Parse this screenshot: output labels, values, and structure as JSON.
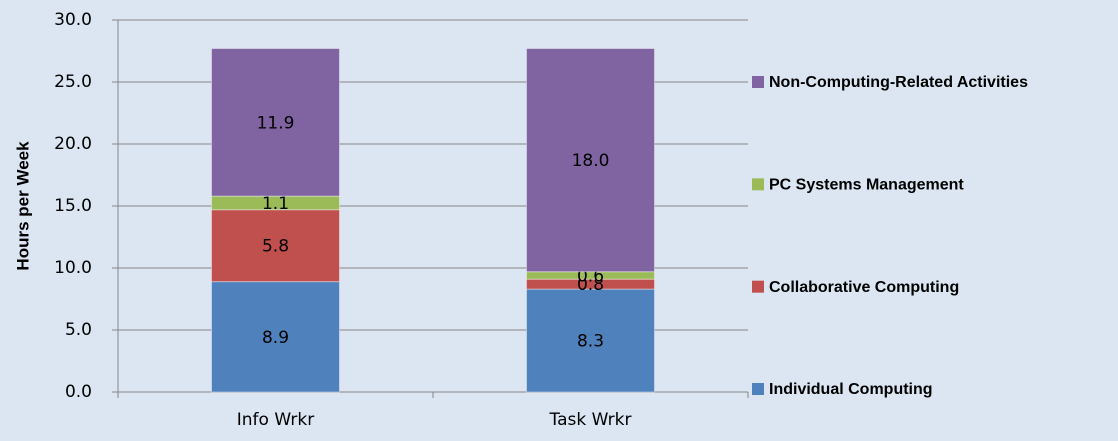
{
  "chart_data": {
    "type": "stacked_bar",
    "y_label": "Hours per Week",
    "categories": [
      "Info Wrkr",
      "Task Wrkr"
    ],
    "series": [
      {
        "name": "Individual Computing",
        "color": "#4f81bd",
        "values": [
          8.9,
          8.3
        ]
      },
      {
        "name": "Collaborative Computing",
        "color": "#c0504d",
        "values": [
          5.8,
          0.8
        ]
      },
      {
        "name": "PC Systems Management",
        "color": "#9bbb59",
        "values": [
          1.1,
          0.6
        ]
      },
      {
        "name": "Non-Computing-Related Activities",
        "color": "#8064a2",
        "values": [
          11.9,
          18
        ],
        "value_labels": [
          "11.9",
          "18.0"
        ]
      }
    ],
    "ylim": [
      0,
      30
    ],
    "yticks": [
      {
        "value": 0,
        "label": "0.0"
      },
      {
        "value": 5,
        "label": "5.0"
      },
      {
        "value": 10,
        "label": "10.0"
      },
      {
        "value": 15,
        "label": "15.0"
      },
      {
        "value": 20,
        "label": "20.0"
      },
      {
        "value": 25,
        "label": "25.0"
      },
      {
        "value": 30,
        "label": "30.0"
      }
    ],
    "grid": true,
    "legend": "right"
  }
}
